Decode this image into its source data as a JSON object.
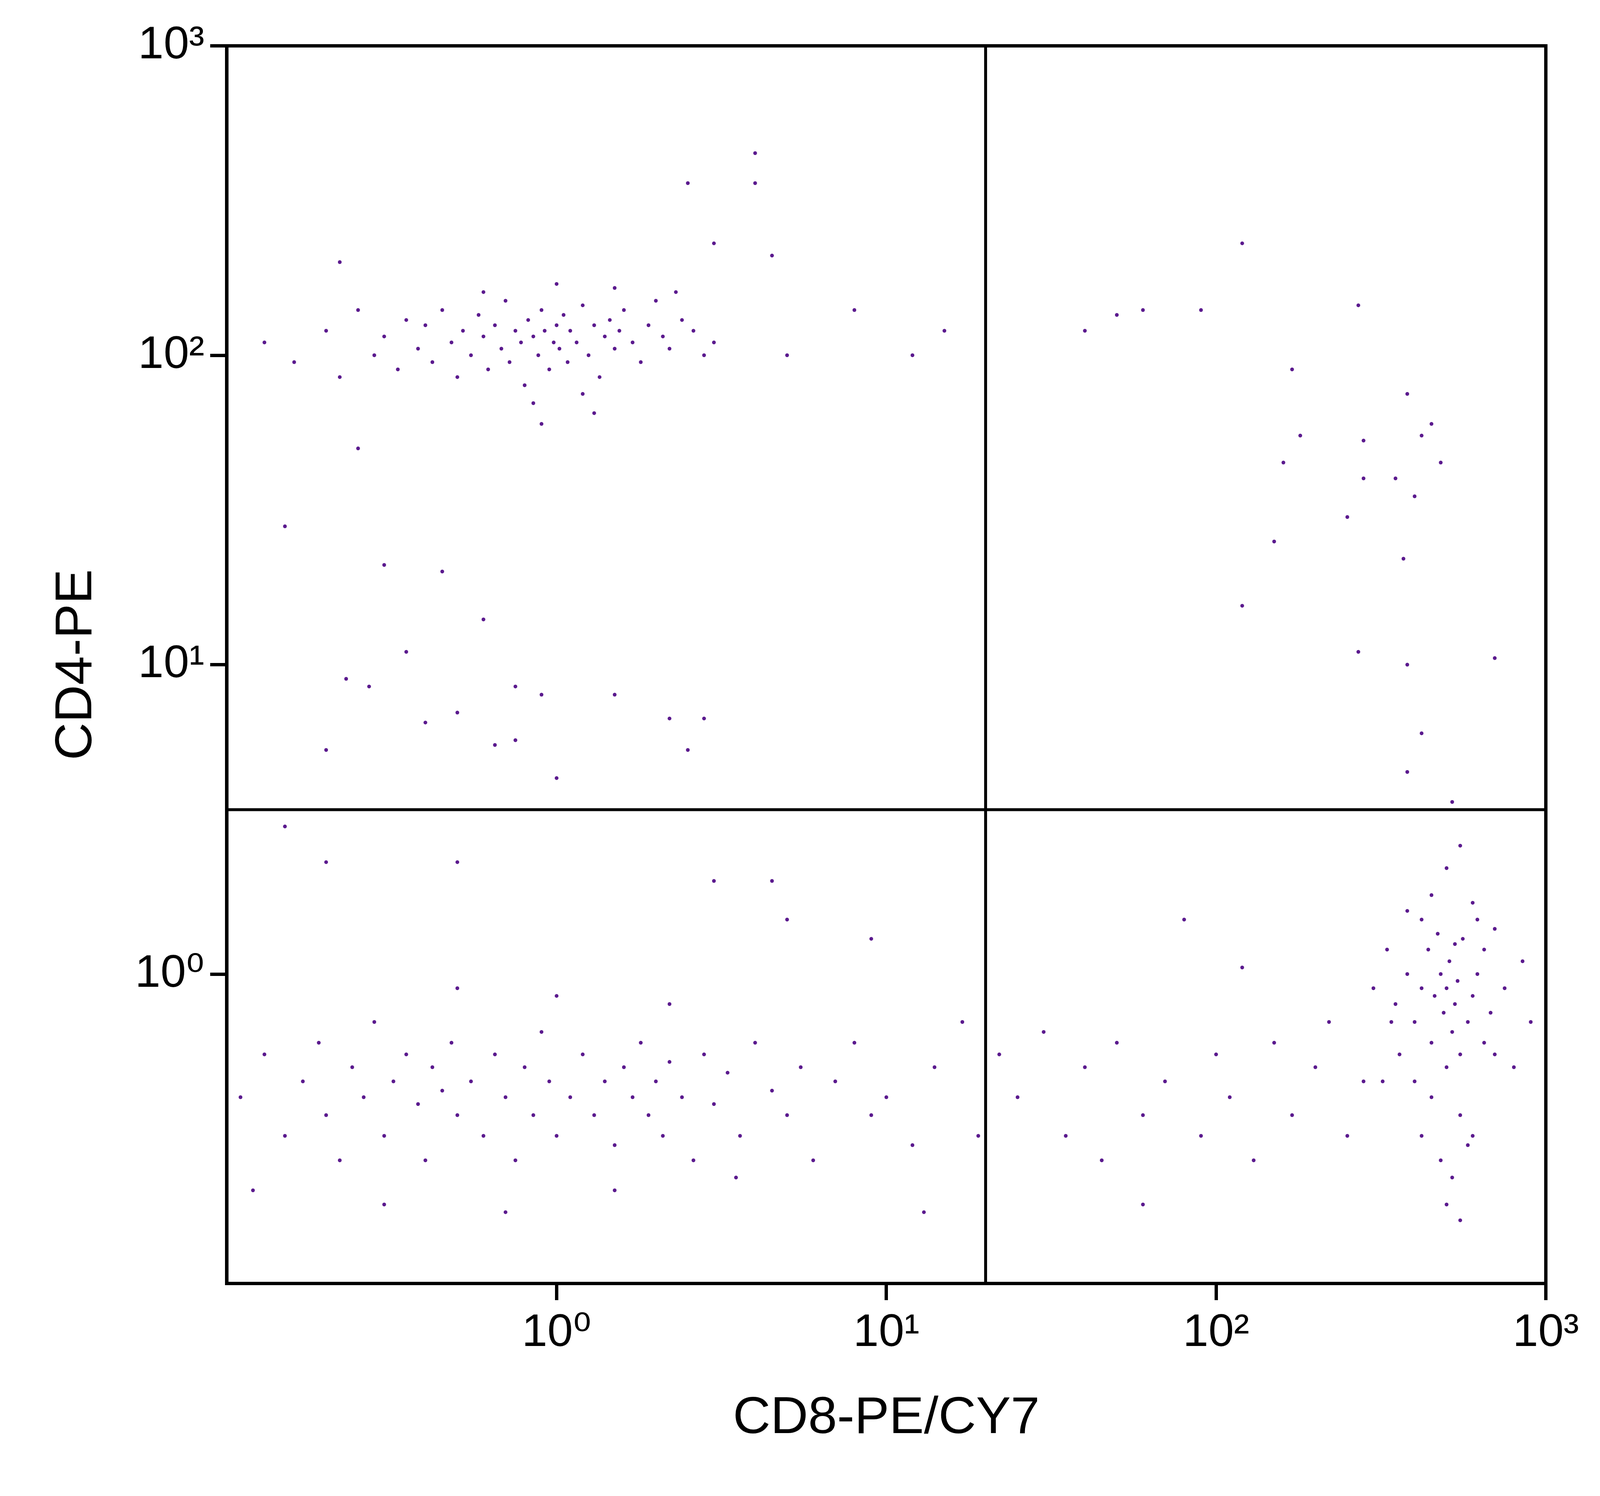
{
  "chart_data": {
    "type": "scatter",
    "x_label": "CD8-PE/CY7",
    "y_label": "CD4-PE",
    "log": true,
    "grid": false,
    "color": "#5b1a8e",
    "marker": "circle",
    "xlim": [
      0.1,
      1000
    ],
    "ylim": [
      0.1,
      1000
    ],
    "xticks": [
      {
        "value": 1,
        "label": "10⁰"
      },
      {
        "value": 10,
        "label": "10¹"
      },
      {
        "value": 100,
        "label": "10²"
      },
      {
        "value": 1000,
        "label": "10³"
      }
    ],
    "yticks": [
      {
        "value": 1,
        "label": "10⁰"
      },
      {
        "value": 10,
        "label": "10¹"
      },
      {
        "value": 100,
        "label": "10²"
      },
      {
        "value": 1000,
        "label": "10³"
      }
    ],
    "quadrant": {
      "x": 20,
      "y": 3.4
    },
    "points": [
      [
        0.13,
        110
      ],
      [
        0.16,
        95
      ],
      [
        0.2,
        120
      ],
      [
        0.22,
        85
      ],
      [
        0.25,
        140
      ],
      [
        0.28,
        100
      ],
      [
        0.3,
        115
      ],
      [
        0.33,
        90
      ],
      [
        0.35,
        130
      ],
      [
        0.38,
        105
      ],
      [
        0.4,
        125
      ],
      [
        0.42,
        95
      ],
      [
        0.45,
        140
      ],
      [
        0.48,
        110
      ],
      [
        0.5,
        85
      ],
      [
        0.52,
        120
      ],
      [
        0.55,
        100
      ],
      [
        0.58,
        135
      ],
      [
        0.6,
        115
      ],
      [
        0.62,
        90
      ],
      [
        0.65,
        125
      ],
      [
        0.68,
        105
      ],
      [
        0.7,
        150
      ],
      [
        0.72,
        95
      ],
      [
        0.75,
        120
      ],
      [
        0.78,
        110
      ],
      [
        0.8,
        80
      ],
      [
        0.82,
        130
      ],
      [
        0.85,
        115
      ],
      [
        0.88,
        100
      ],
      [
        0.9,
        140
      ],
      [
        0.92,
        120
      ],
      [
        0.95,
        90
      ],
      [
        0.98,
        110
      ],
      [
        1.0,
        125
      ],
      [
        1.02,
        105
      ],
      [
        1.05,
        135
      ],
      [
        1.08,
        95
      ],
      [
        1.1,
        120
      ],
      [
        1.15,
        110
      ],
      [
        1.2,
        145
      ],
      [
        1.25,
        100
      ],
      [
        1.3,
        125
      ],
      [
        1.35,
        85
      ],
      [
        1.4,
        115
      ],
      [
        1.45,
        130
      ],
      [
        1.5,
        105
      ],
      [
        1.55,
        120
      ],
      [
        1.6,
        140
      ],
      [
        1.7,
        110
      ],
      [
        1.8,
        95
      ],
      [
        1.9,
        125
      ],
      [
        2.0,
        150
      ],
      [
        2.1,
        115
      ],
      [
        2.2,
        105
      ],
      [
        2.4,
        130
      ],
      [
        2.6,
        120
      ],
      [
        2.8,
        100
      ],
      [
        3.0,
        110
      ],
      [
        0.85,
        70
      ],
      [
        1.2,
        75
      ],
      [
        0.6,
        160
      ],
      [
        1.0,
        170
      ],
      [
        1.5,
        165
      ],
      [
        2.3,
        160
      ],
      [
        0.9,
        60
      ],
      [
        1.3,
        65
      ],
      [
        4,
        450
      ],
      [
        2.5,
        360
      ],
      [
        4,
        360
      ],
      [
        3,
        230
      ],
      [
        4.5,
        210
      ],
      [
        8,
        140
      ],
      [
        15,
        120
      ],
      [
        12,
        100
      ],
      [
        5,
        100
      ],
      [
        0.22,
        200
      ],
      [
        0.25,
        50
      ],
      [
        0.15,
        28
      ],
      [
        0.3,
        21
      ],
      [
        0.45,
        20
      ],
      [
        0.6,
        14
      ],
      [
        0.35,
        11
      ],
      [
        0.23,
        9
      ],
      [
        0.27,
        8.5
      ],
      [
        0.4,
        6.5
      ],
      [
        0.5,
        7
      ],
      [
        0.75,
        8.5
      ],
      [
        0.9,
        8
      ],
      [
        1.5,
        8
      ],
      [
        2.2,
        6.7
      ],
      [
        2.8,
        6.7
      ],
      [
        0.65,
        5.5
      ],
      [
        0.75,
        5.7
      ],
      [
        0.2,
        5.3
      ],
      [
        1,
        4.3
      ],
      [
        2.5,
        5.3
      ],
      [
        0.11,
        0.4
      ],
      [
        0.13,
        0.55
      ],
      [
        0.15,
        0.3
      ],
      [
        0.17,
        0.45
      ],
      [
        0.19,
        0.6
      ],
      [
        0.2,
        0.35
      ],
      [
        0.22,
        0.25
      ],
      [
        0.24,
        0.5
      ],
      [
        0.26,
        0.4
      ],
      [
        0.28,
        0.7
      ],
      [
        0.3,
        0.3
      ],
      [
        0.32,
        0.45
      ],
      [
        0.35,
        0.55
      ],
      [
        0.38,
        0.38
      ],
      [
        0.4,
        0.25
      ],
      [
        0.42,
        0.5
      ],
      [
        0.45,
        0.42
      ],
      [
        0.48,
        0.6
      ],
      [
        0.5,
        0.35
      ],
      [
        0.55,
        0.45
      ],
      [
        0.6,
        0.3
      ],
      [
        0.65,
        0.55
      ],
      [
        0.7,
        0.4
      ],
      [
        0.75,
        0.25
      ],
      [
        0.8,
        0.5
      ],
      [
        0.85,
        0.35
      ],
      [
        0.9,
        0.65
      ],
      [
        0.95,
        0.45
      ],
      [
        1.0,
        0.3
      ],
      [
        1.1,
        0.4
      ],
      [
        1.2,
        0.55
      ],
      [
        1.3,
        0.35
      ],
      [
        1.4,
        0.45
      ],
      [
        1.5,
        0.28
      ],
      [
        1.6,
        0.5
      ],
      [
        1.7,
        0.4
      ],
      [
        1.8,
        0.6
      ],
      [
        1.9,
        0.35
      ],
      [
        2.0,
        0.45
      ],
      [
        2.1,
        0.3
      ],
      [
        2.2,
        0.52
      ],
      [
        2.4,
        0.4
      ],
      [
        2.6,
        0.25
      ],
      [
        2.8,
        0.55
      ],
      [
        3.0,
        0.38
      ],
      [
        3.3,
        0.48
      ],
      [
        3.6,
        0.3
      ],
      [
        4.0,
        0.6
      ],
      [
        4.5,
        0.42
      ],
      [
        5,
        0.35
      ],
      [
        5.5,
        0.5
      ],
      [
        6,
        0.25
      ],
      [
        7,
        0.45
      ],
      [
        8,
        0.6
      ],
      [
        9,
        0.35
      ],
      [
        10,
        0.4
      ],
      [
        12,
        0.28
      ],
      [
        14,
        0.5
      ],
      [
        17,
        0.7
      ],
      [
        19,
        0.3
      ],
      [
        0.5,
        0.9
      ],
      [
        1.0,
        0.85
      ],
      [
        2.2,
        0.8
      ],
      [
        3,
        2
      ],
      [
        4.5,
        2
      ],
      [
        5,
        1.5
      ],
      [
        9,
        1.3
      ],
      [
        0.2,
        2.3
      ],
      [
        0.5,
        2.3
      ],
      [
        0.15,
        3
      ],
      [
        0.3,
        0.18
      ],
      [
        0.7,
        0.17
      ],
      [
        1.5,
        0.2
      ],
      [
        3.5,
        0.22
      ],
      [
        0.12,
        0.2
      ],
      [
        13,
        0.17
      ],
      [
        22,
        0.55
      ],
      [
        25,
        0.4
      ],
      [
        30,
        0.65
      ],
      [
        35,
        0.3
      ],
      [
        40,
        0.5
      ],
      [
        45,
        0.25
      ],
      [
        50,
        0.6
      ],
      [
        60,
        0.35
      ],
      [
        70,
        0.45
      ],
      [
        80,
        1.5
      ],
      [
        90,
        0.3
      ],
      [
        100,
        0.55
      ],
      [
        110,
        0.4
      ],
      [
        130,
        0.25
      ],
      [
        150,
        0.6
      ],
      [
        170,
        0.35
      ],
      [
        200,
        0.5
      ],
      [
        220,
        0.7
      ],
      [
        250,
        0.3
      ],
      [
        280,
        0.45
      ],
      [
        120,
        1.05
      ],
      [
        60,
        0.18
      ],
      [
        300,
        0.9
      ],
      [
        350,
        0.8
      ],
      [
        380,
        1.0
      ],
      [
        400,
        0.7
      ],
      [
        420,
        0.9
      ],
      [
        440,
        1.2
      ],
      [
        450,
        0.6
      ],
      [
        460,
        0.85
      ],
      [
        480,
        1.0
      ],
      [
        490,
        0.75
      ],
      [
        500,
        0.9
      ],
      [
        510,
        1.1
      ],
      [
        520,
        0.65
      ],
      [
        530,
        0.8
      ],
      [
        540,
        0.95
      ],
      [
        550,
        0.55
      ],
      [
        560,
        1.3
      ],
      [
        580,
        0.7
      ],
      [
        600,
        0.85
      ],
      [
        620,
        1.0
      ],
      [
        650,
        0.6
      ],
      [
        680,
        0.75
      ],
      [
        700,
        1.4
      ],
      [
        750,
        0.9
      ],
      [
        800,
        0.5
      ],
      [
        850,
        1.1
      ],
      [
        900,
        0.7
      ],
      [
        400,
        0.45
      ],
      [
        450,
        0.4
      ],
      [
        500,
        0.5
      ],
      [
        550,
        0.35
      ],
      [
        420,
        0.3
      ],
      [
        480,
        0.25
      ],
      [
        520,
        0.22
      ],
      [
        580,
        0.28
      ],
      [
        380,
        1.6
      ],
      [
        450,
        1.8
      ],
      [
        500,
        2.2
      ],
      [
        600,
        1.7
      ],
      [
        550,
        2.6
      ],
      [
        330,
        1.2
      ],
      [
        360,
        0.55
      ],
      [
        420,
        1.5
      ],
      [
        470,
        1.35
      ],
      [
        530,
        1.25
      ],
      [
        620,
        1.5
      ],
      [
        700,
        0.55
      ],
      [
        650,
        1.2
      ],
      [
        500,
        0.18
      ],
      [
        550,
        0.16
      ],
      [
        600,
        0.3
      ],
      [
        320,
        0.45
      ],
      [
        340,
        0.7
      ],
      [
        40,
        120
      ],
      [
        50,
        135
      ],
      [
        60,
        140
      ],
      [
        90,
        140
      ],
      [
        120,
        230
      ],
      [
        170,
        90
      ],
      [
        160,
        45
      ],
      [
        180,
        55
      ],
      [
        250,
        30
      ],
      [
        270,
        145
      ],
      [
        280,
        53
      ],
      [
        280,
        40
      ],
      [
        350,
        40
      ],
      [
        380,
        75
      ],
      [
        400,
        35
      ],
      [
        420,
        55
      ],
      [
        450,
        60
      ],
      [
        480,
        45
      ],
      [
        270,
        11
      ],
      [
        380,
        10
      ],
      [
        700,
        10.5
      ],
      [
        120,
        15.5
      ],
      [
        150,
        25
      ],
      [
        370,
        22
      ],
      [
        420,
        6
      ],
      [
        380,
        4.5
      ],
      [
        520,
        3.6
      ]
    ]
  }
}
